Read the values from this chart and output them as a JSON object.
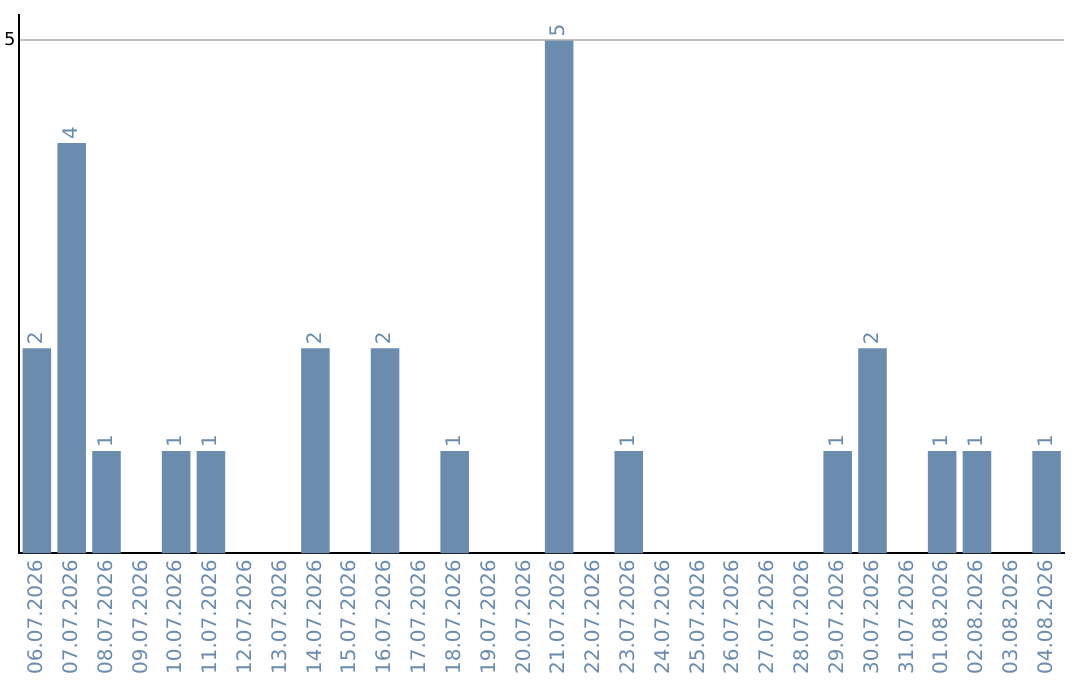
{
  "chart_data": {
    "type": "bar",
    "categories": [
      "06.07.2026",
      "07.07.2026",
      "08.07.2026",
      "09.07.2026",
      "10.07.2026",
      "11.07.2026",
      "12.07.2026",
      "13.07.2026",
      "14.07.2026",
      "15.07.2026",
      "16.07.2026",
      "17.07.2026",
      "18.07.2026",
      "19.07.2026",
      "20.07.2026",
      "21.07.2026",
      "22.07.2026",
      "23.07.2026",
      "24.07.2026",
      "25.07.2026",
      "26.07.2026",
      "27.07.2026",
      "28.07.2026",
      "29.07.2026",
      "30.07.2026",
      "31.07.2026",
      "01.08.2026",
      "02.08.2026",
      "03.08.2026",
      "04.08.2026"
    ],
    "values": [
      2,
      4,
      1,
      0,
      1,
      1,
      0,
      0,
      2,
      0,
      2,
      0,
      1,
      0,
      0,
      5,
      0,
      1,
      0,
      0,
      0,
      0,
      0,
      1,
      2,
      0,
      1,
      1,
      0,
      1
    ],
    "value_labels": [
      "2",
      "4",
      "1",
      null,
      "1",
      "1",
      null,
      null,
      "2",
      null,
      "2",
      null,
      "1",
      null,
      null,
      "5",
      null,
      "1",
      null,
      null,
      null,
      null,
      null,
      "1",
      "2",
      null,
      "1",
      "1",
      null,
      "1"
    ],
    "color": "#6b8cad",
    "ylim": [
      0,
      5.25
    ],
    "yticks": [
      5
    ],
    "grid": "y",
    "legend": false
  }
}
